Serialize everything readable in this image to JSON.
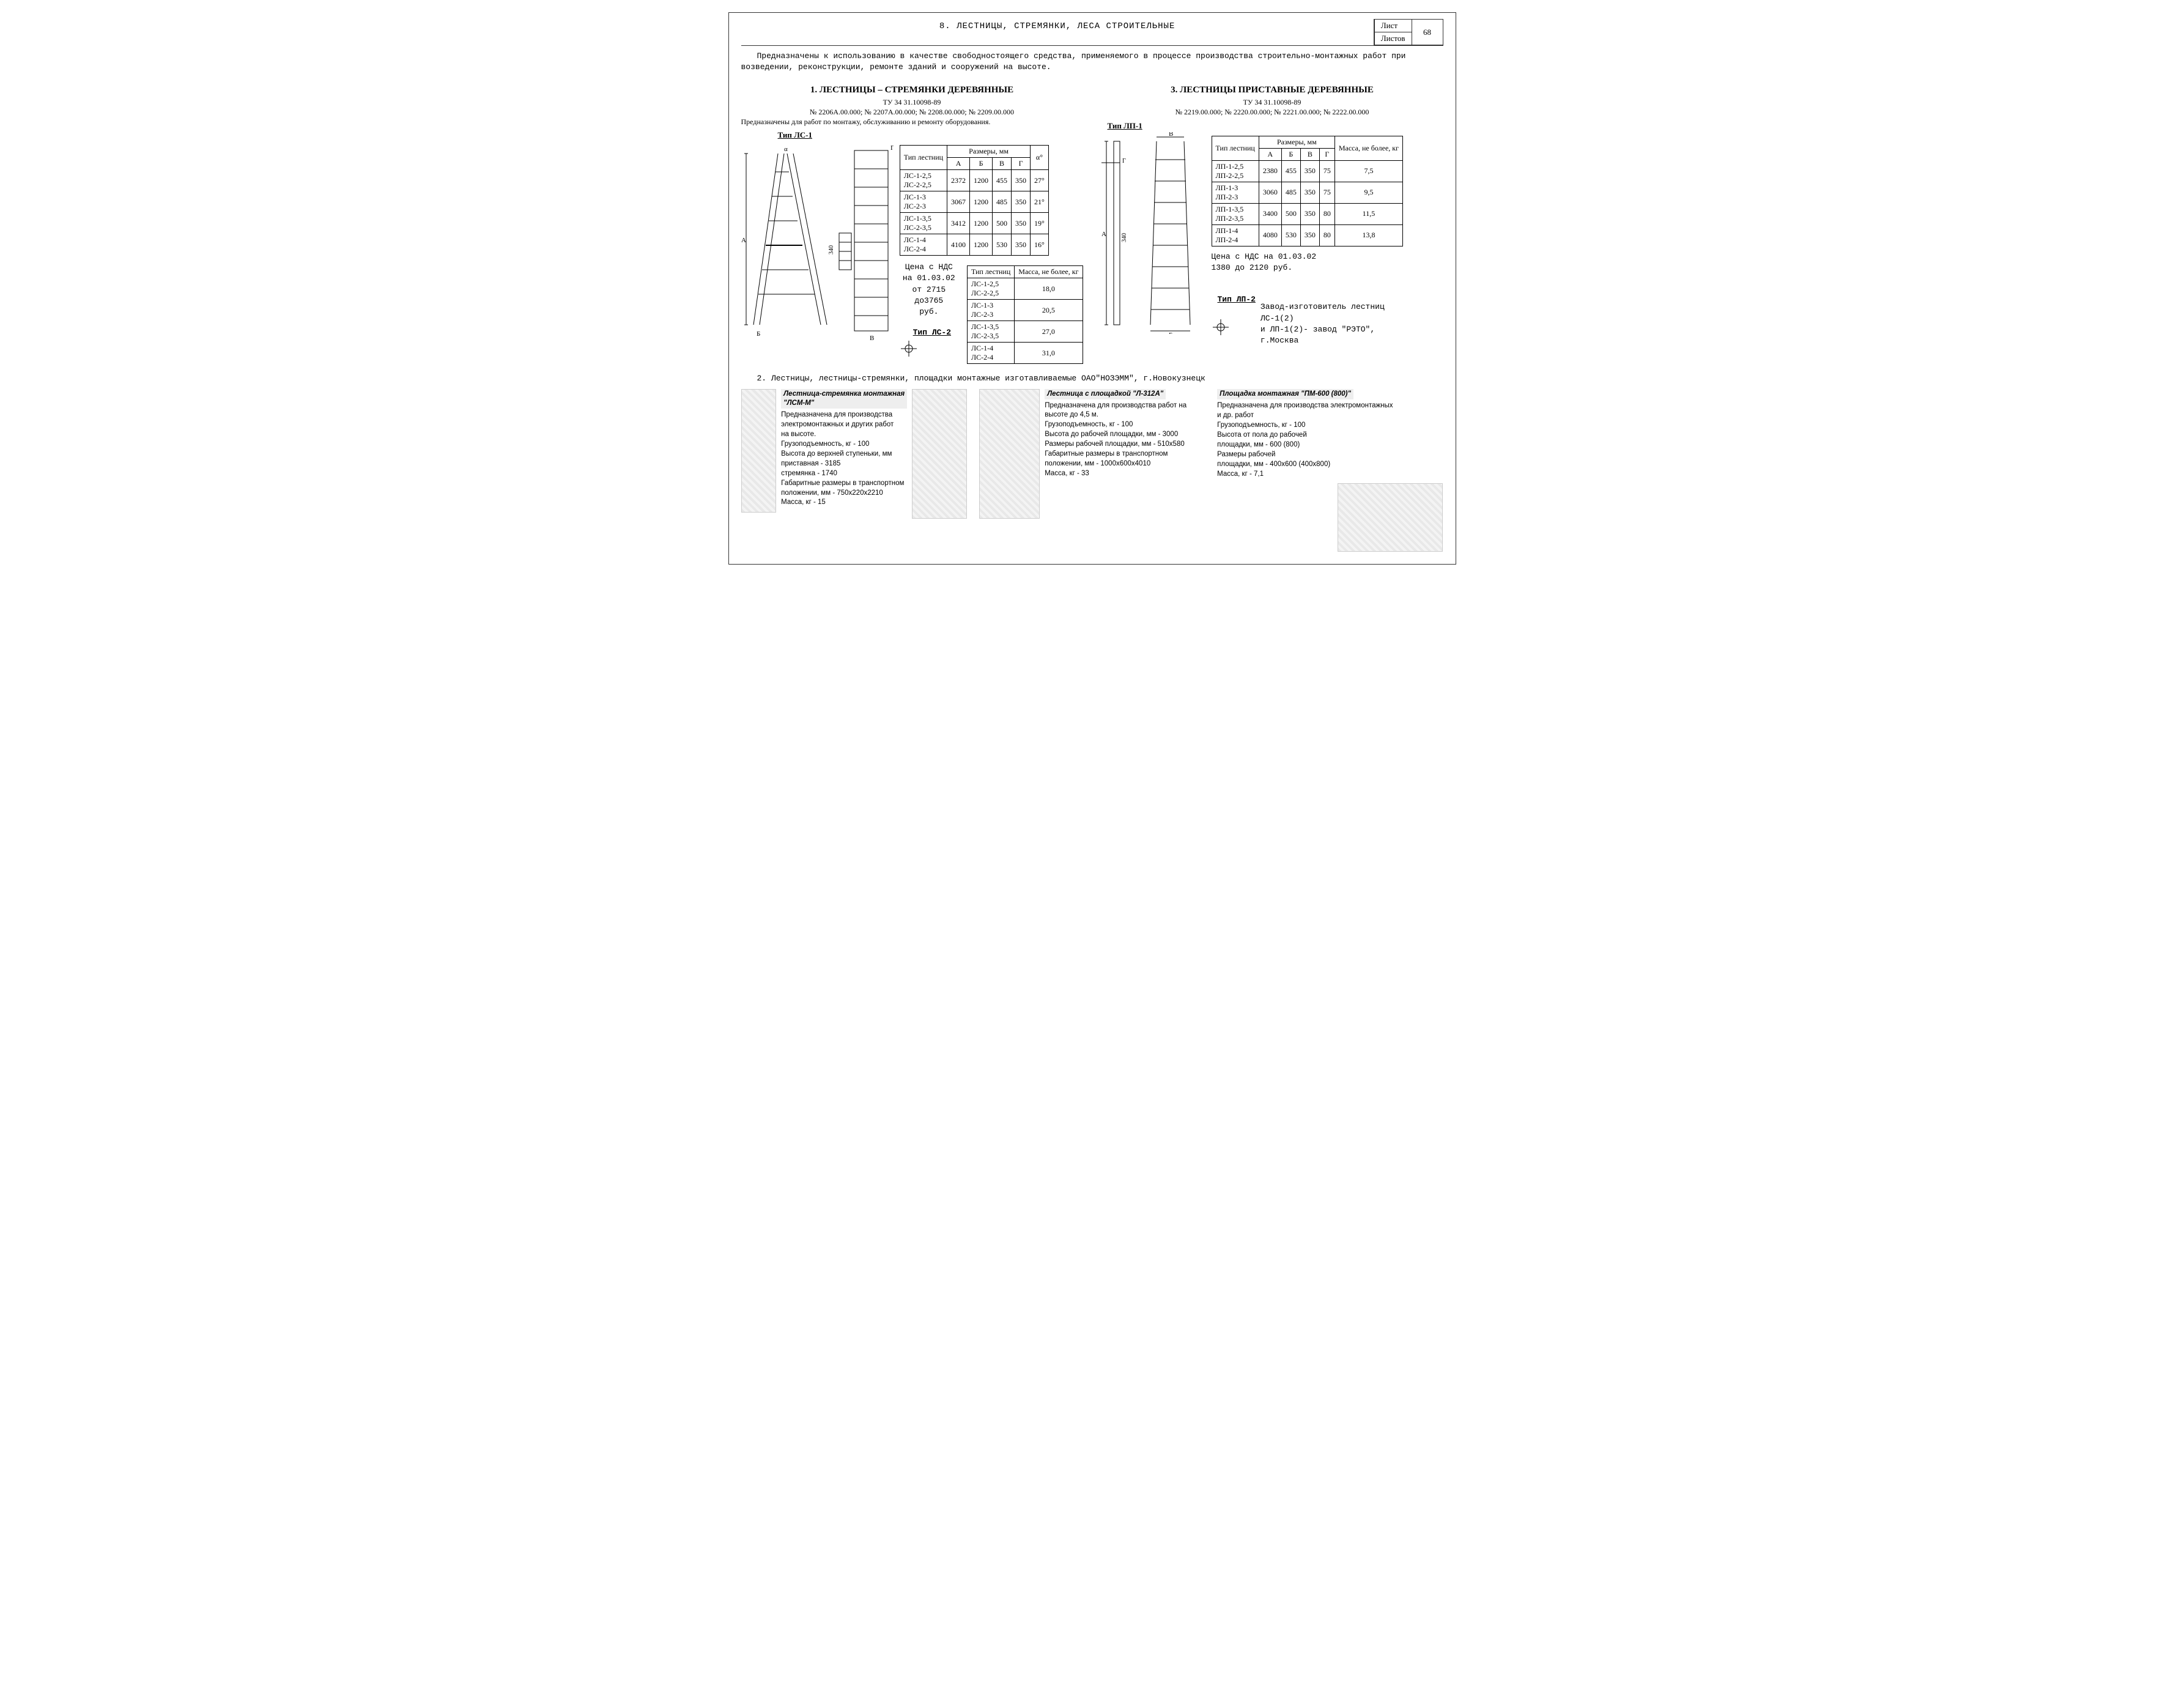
{
  "header": {
    "title": "8. ЛЕСТНИЦЫ, СТРЕМЯНКИ, ЛЕСА СТРОИТЕЛЬНЫЕ",
    "sheet_label": "Лист",
    "sheets_label": "Листов",
    "page_no": "68"
  },
  "intro": "Предназначены к использованию в качестве свободностоящего средства, применяемого в процессе производства строительно-монтажных работ при возведении, реконструкции, ремонте зданий и сооружений на высоте.",
  "sec1": {
    "title": "1. ЛЕСТНИЦЫ – СТРЕМЯНКИ ДЕРЕВЯННЫЕ",
    "tu": "ТУ 34 31.10098-89",
    "nums": "№ 2206А.00.000; № 2207А.00.000; № 2208.00.000; № 2209.00.000",
    "purpose": "Предназначены для работ по монтажу, обслуживанию и ремонту оборудования.",
    "type1_label": "Тип ЛС-1",
    "type2_label": "Тип ЛС-2",
    "dim_table": {
      "h_type": "Тип лестниц",
      "h_dims": "Размеры, мм",
      "h_A": "А",
      "h_B": "Б",
      "h_V": "В",
      "h_G": "Г",
      "h_a": "α°",
      "rows": [
        {
          "t": "ЛС-1-2,5\nЛС-2-2,5",
          "A": "2372",
          "B": "1200",
          "V": "455",
          "G": "350",
          "a": "27°"
        },
        {
          "t": "ЛС-1-3\nЛС-2-3",
          "A": "3067",
          "B": "1200",
          "V": "485",
          "G": "350",
          "a": "21°"
        },
        {
          "t": "ЛС-1-3,5\nЛС-2-3,5",
          "A": "3412",
          "B": "1200",
          "V": "500",
          "G": "350",
          "a": "19°"
        },
        {
          "t": "ЛС-1-4\nЛС-2-4",
          "A": "4100",
          "B": "1200",
          "V": "530",
          "G": "350",
          "a": "16°"
        }
      ]
    },
    "mass_table": {
      "h_type": "Тип лестниц",
      "h_mass": "Масса, не более, кг",
      "rows": [
        {
          "t": "ЛС-1-2,5\nЛС-2-2,5",
          "m": "18,0"
        },
        {
          "t": "ЛС-1-3\nЛС-2-3",
          "m": "20,5"
        },
        {
          "t": "ЛС-1-3,5\nЛС-2-3,5",
          "m": "27,0"
        },
        {
          "t": "ЛС-1-4\nЛС-2-4",
          "m": "31,0"
        }
      ]
    },
    "price1": "Цена с НДС",
    "price2": "на 01.03.02",
    "price3": "от 2715 до3765",
    "price4": "руб."
  },
  "sec3": {
    "title": "3. ЛЕСТНИЦЫ ПРИСТАВНЫЕ ДЕРЕВЯННЫЕ",
    "tu": "ТУ 34 31.10098-89",
    "nums": "№ 2219.00.000; № 2220.00.000; № 2221.00.000; № 2222.00.000",
    "type1_label": "Тип ЛП-1",
    "type2_label": "Тип ЛП-2",
    "table": {
      "h_type": "Тип лестниц",
      "h_dims": "Размеры, мм",
      "h_mass": "Масса, не более, кг",
      "h_A": "А",
      "h_B": "Б",
      "h_V": "В",
      "h_G": "Г",
      "rows": [
        {
          "t": "ЛП-1-2,5\nЛП-2-2,5",
          "A": "2380",
          "B": "455",
          "V": "350",
          "G": "75",
          "m": "7,5"
        },
        {
          "t": "ЛП-1-3\nЛП-2-3",
          "A": "3060",
          "B": "485",
          "V": "350",
          "G": "75",
          "m": "9,5"
        },
        {
          "t": "ЛП-1-3,5\nЛП-2-3,5",
          "A": "3400",
          "B": "500",
          "V": "350",
          "G": "80",
          "m": "11,5"
        },
        {
          "t": "ЛП-1-4\nЛП-2-4",
          "A": "4080",
          "B": "530",
          "V": "350",
          "G": "80",
          "m": "13,8"
        }
      ]
    },
    "price": "Цена с НДС на 01.03.02\n1380 до 2120 руб.",
    "maker": "Завод-изготовитель лестниц ЛС-1(2)\nи ЛП-1(2)- завод \"РЭТО\", г.Москва"
  },
  "note2": "2. Лестницы, лестницы-стремянки, площадки монтажные изготавливаемые ОАО\"НОЗЭММ\", г.Новокузнецк",
  "products": {
    "lsm": {
      "title": "Лестница-стремянка монтажная \"ЛСМ-М\"",
      "lines": [
        "Предназначена для производства",
        "электромонтажных и других работ",
        "на высоте.",
        "Грузоподъемность, кг - 100",
        "Высота до верхней ступеньки, мм",
        "  приставная - 3185",
        "  стремянка - 1740",
        "Габаритные размеры в транспортном",
        "положении, мм - 750х220х2210",
        "Масса, кг - 15"
      ]
    },
    "l312": {
      "title": "Лестница с площадкой \"Л-312А\"",
      "lines": [
        "Предназначена для производства работ на высоте до 4,5 м.",
        "Грузоподъемность, кг - 100",
        "Высота до рабочей площадки, мм - 3000",
        "Размеры рабочей площадки, мм - 510х580",
        "Габаритные размеры в транспортном",
        "положении, мм - 1000х600х4010",
        "Масса, кг - 33"
      ]
    },
    "pm600": {
      "title": "Площадка монтажная \"ПМ-600 (800)\"",
      "lines": [
        "Предназначена для производства электромонтажных",
        "и др. работ",
        "Грузоподъемность, кг - 100",
        "Высота от пола до рабочей",
        "площадки, мм - 600 (800)",
        "Размеры рабочей",
        "площадки, мм - 400х600 (400х800)",
        "Масса, кг - 7,1"
      ]
    }
  },
  "drawing": {
    "dim_340": "340",
    "lbl_A": "А",
    "lbl_B": "Б",
    "lbl_V": "В",
    "lbl_G": "Г",
    "lbl_a": "α"
  }
}
